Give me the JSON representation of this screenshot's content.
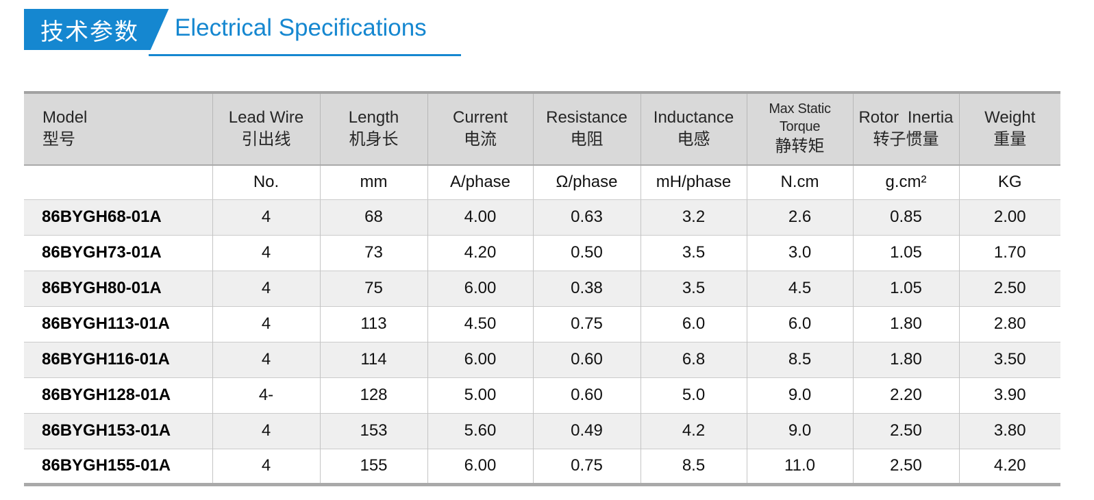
{
  "title": {
    "zh": "技术参数",
    "en": "Electrical Specifications"
  },
  "colors": {
    "accent_blue": "#1587d0",
    "header_band_gray": "#d9d9d9",
    "alt_row_gray": "#efefef",
    "border_dark_gray": "#a2a2a2"
  },
  "table": {
    "columns": [
      {
        "en": "Model",
        "zh": "型号",
        "unit": ""
      },
      {
        "en": "Lead Wire",
        "zh": "引出线",
        "unit": "No."
      },
      {
        "en": "Length",
        "zh": "机身长",
        "unit": "mm"
      },
      {
        "en": "Current",
        "zh": "电流",
        "unit": "A/phase"
      },
      {
        "en": "Resistance",
        "zh": "电阻",
        "unit": "Ω/phase"
      },
      {
        "en": "Inductance",
        "zh": "电感",
        "unit": "mH/phase"
      },
      {
        "en": "Max Static Torque",
        "zh": "静转矩",
        "unit": "N.cm"
      },
      {
        "en": "Rotor Inertia",
        "zh": "转子惯量",
        "unit": "g.cm²"
      },
      {
        "en": "Weight",
        "zh": "重量",
        "unit": "KG"
      }
    ],
    "rows": [
      [
        "86BYGH68-01A",
        "4",
        "68",
        "4.00",
        "0.63",
        "3.2",
        "2.6",
        "0.85",
        "2.00"
      ],
      [
        "86BYGH73-01A",
        "4",
        "73",
        "4.20",
        "0.50",
        "3.5",
        "3.0",
        "1.05",
        "1.70"
      ],
      [
        "86BYGH80-01A",
        "4",
        "75",
        "6.00",
        "0.38",
        "3.5",
        "4.5",
        "1.05",
        "2.50"
      ],
      [
        "86BYGH113-01A",
        "4",
        "113",
        "4.50",
        "0.75",
        "6.0",
        "6.0",
        "1.80",
        "2.80"
      ],
      [
        "86BYGH116-01A",
        "4",
        "114",
        "6.00",
        "0.60",
        "6.8",
        "8.5",
        "1.80",
        "3.50"
      ],
      [
        "86BYGH128-01A",
        "4-",
        "128",
        "5.00",
        "0.60",
        "5.0",
        "9.0",
        "2.20",
        "3.90"
      ],
      [
        "86BYGH153-01A",
        "4",
        "153",
        "5.60",
        "0.49",
        "4.2",
        "9.0",
        "2.50",
        "3.80"
      ],
      [
        "86BYGH155-01A",
        "4",
        "155",
        "6.00",
        "0.75",
        "8.5",
        "11.0",
        "2.50",
        "4.20"
      ]
    ]
  }
}
